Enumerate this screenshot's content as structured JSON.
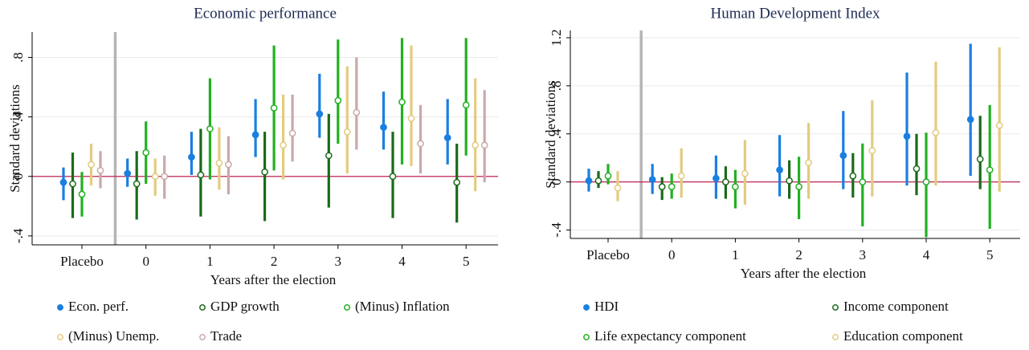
{
  "chart_data": [
    {
      "type": "errorbar",
      "title": "Economic performance",
      "x_label": "Years after the election",
      "y_label": "Standard deviations",
      "categories": [
        "Placebo",
        "0",
        "1",
        "2",
        "3",
        "4",
        "5"
      ],
      "ylim": [
        -0.46,
        0.97
      ],
      "yticks": [
        {
          "value": -0.4,
          "label": "-.4"
        },
        0,
        {
          "value": 0.4,
          "label": ".4"
        },
        {
          "value": 0.8,
          "label": ".8"
        }
      ],
      "grid": true,
      "series": [
        {
          "name": "Econ. perf.",
          "color": "#1a7fe0",
          "filled": true,
          "values": [
            -0.04,
            0.02,
            0.13,
            0.28,
            0.42,
            0.33,
            0.26
          ],
          "lower": [
            -0.16,
            -0.07,
            0.01,
            0.13,
            0.26,
            0.18,
            0.08
          ],
          "upper": [
            0.06,
            0.12,
            0.3,
            0.52,
            0.69,
            0.57,
            0.52
          ]
        },
        {
          "name": "GDP growth",
          "color": "#1a6a1a",
          "filled": false,
          "values": [
            -0.05,
            -0.05,
            0.01,
            0.03,
            0.14,
            0.0,
            -0.04
          ],
          "lower": [
            -0.28,
            -0.29,
            -0.27,
            -0.3,
            -0.21,
            -0.28,
            -0.31
          ],
          "upper": [
            0.16,
            0.17,
            0.32,
            0.3,
            0.42,
            0.3,
            0.22
          ]
        },
        {
          "name": "(Minus) Inflation",
          "color": "#22b022",
          "filled": false,
          "values": [
            -0.12,
            0.16,
            0.32,
            0.46,
            0.51,
            0.5,
            0.48
          ],
          "lower": [
            -0.27,
            -0.05,
            -0.02,
            0.04,
            0.22,
            0.08,
            0.14
          ],
          "upper": [
            0.03,
            0.37,
            0.66,
            0.88,
            0.92,
            0.93,
            0.93
          ]
        },
        {
          "name": "(Minus) Unemp.",
          "color": "#e3cb7f",
          "filled": false,
          "values": [
            0.08,
            0.0,
            0.09,
            0.21,
            0.3,
            0.39,
            0.21
          ],
          "lower": [
            -0.06,
            -0.13,
            -0.09,
            -0.02,
            0.02,
            0.07,
            -0.1
          ],
          "upper": [
            0.22,
            0.12,
            0.33,
            0.55,
            0.74,
            0.88,
            0.66
          ]
        },
        {
          "name": "Trade",
          "color": "#c9a9a9",
          "filled": false,
          "values": [
            0.04,
            0.0,
            0.08,
            0.29,
            0.43,
            0.22,
            0.21
          ],
          "lower": [
            -0.08,
            -0.15,
            -0.12,
            0.1,
            0.18,
            0.02,
            -0.04
          ],
          "upper": [
            0.17,
            0.14,
            0.27,
            0.55,
            0.8,
            0.48,
            0.58
          ]
        }
      ]
    },
    {
      "type": "errorbar",
      "title": "Human Development Index",
      "x_label": "Years after the election",
      "y_label": "Standard deviations",
      "categories": [
        "Placebo",
        "0",
        "1",
        "2",
        "3",
        "4",
        "5"
      ],
      "ylim": [
        -0.47,
        1.26
      ],
      "yticks": [
        {
          "value": -0.4,
          "label": "-.4"
        },
        0,
        {
          "value": 0.4,
          "label": ".4"
        },
        {
          "value": 0.8,
          "label": ".8"
        },
        1.2
      ],
      "grid": true,
      "series": [
        {
          "name": "HDI",
          "color": "#1a7fe0",
          "filled": true,
          "values": [
            0.01,
            0.02,
            0.03,
            0.1,
            0.22,
            0.38,
            0.52
          ],
          "lower": [
            -0.08,
            -0.1,
            -0.14,
            -0.12,
            -0.06,
            -0.03,
            0.05
          ],
          "upper": [
            0.11,
            0.15,
            0.22,
            0.39,
            0.59,
            0.91,
            1.15
          ]
        },
        {
          "name": "Income component",
          "color": "#1a6a1a",
          "filled": false,
          "values": [
            0.01,
            -0.04,
            0.0,
            0.01,
            0.05,
            0.11,
            0.19
          ],
          "lower": [
            -0.05,
            -0.15,
            -0.14,
            -0.14,
            -0.13,
            -0.11,
            -0.06
          ],
          "upper": [
            0.09,
            0.04,
            0.13,
            0.18,
            0.24,
            0.4,
            0.55
          ]
        },
        {
          "name": "Life expectancy component",
          "color": "#22b022",
          "filled": false,
          "values": [
            0.05,
            -0.04,
            -0.04,
            -0.04,
            0.0,
            0.0,
            0.1
          ],
          "lower": [
            -0.02,
            -0.14,
            -0.22,
            -0.31,
            -0.37,
            -0.46,
            -0.39
          ],
          "upper": [
            0.15,
            0.07,
            0.1,
            0.21,
            0.32,
            0.41,
            0.64
          ]
        },
        {
          "name": "Education component",
          "color": "#e3cb7f",
          "filled": false,
          "values": [
            -0.05,
            0.05,
            0.07,
            0.16,
            0.26,
            0.41,
            0.47
          ],
          "lower": [
            -0.16,
            -0.13,
            -0.19,
            -0.14,
            -0.12,
            -0.03,
            -0.08
          ],
          "upper": [
            0.09,
            0.28,
            0.35,
            0.49,
            0.68,
            1.0,
            1.12
          ]
        }
      ]
    }
  ]
}
